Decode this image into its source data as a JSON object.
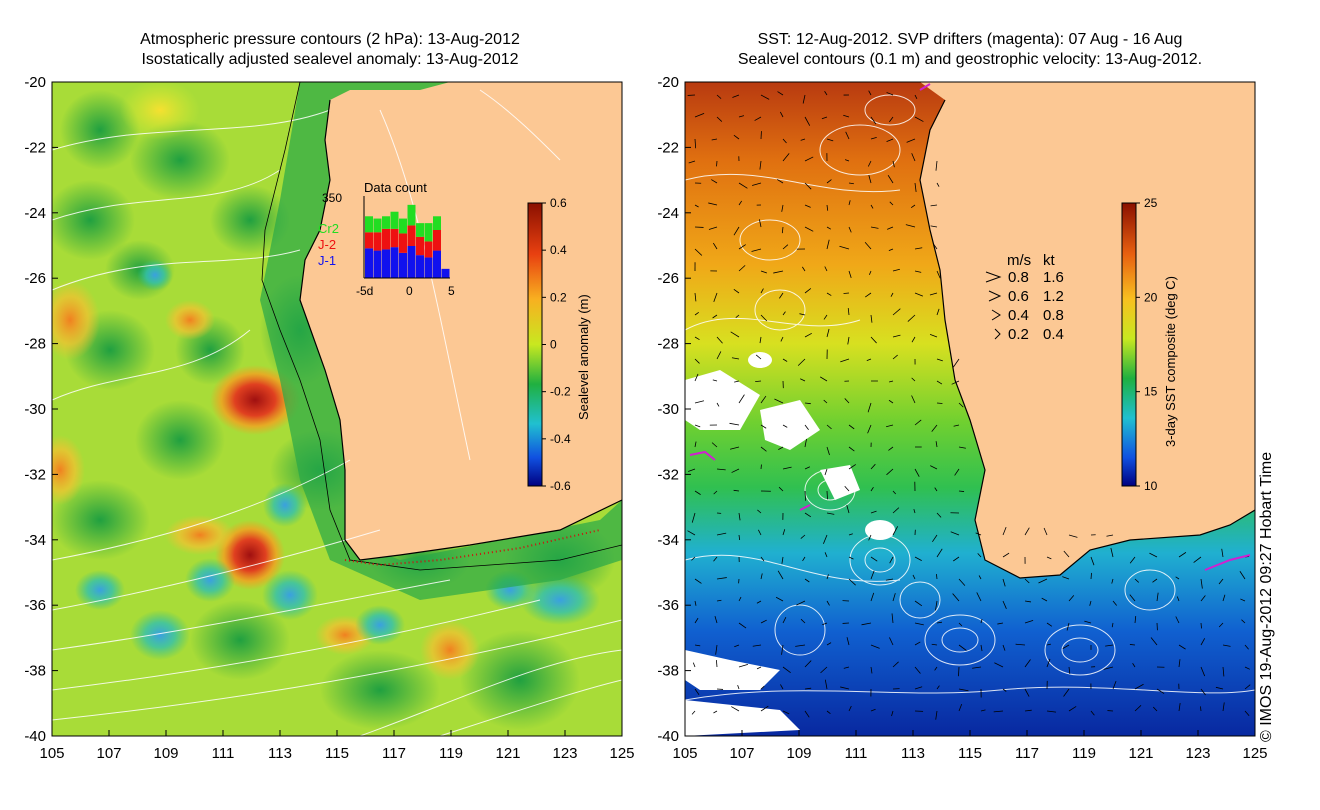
{
  "left_panel": {
    "title_line1": "Atmospheric pressure contours (2 hPa): 13-Aug-2012",
    "title_line2": "Isostatically adjusted sealevel anomaly: 13-Aug-2012",
    "y_ticks": [
      "-20",
      "-22",
      "-24",
      "-26",
      "-28",
      "-30",
      "-32",
      "-34",
      "-36",
      "-38",
      "-40"
    ],
    "x_ticks": [
      "105",
      "107",
      "109",
      "111",
      "113",
      "115",
      "117",
      "119",
      "121",
      "123",
      "125"
    ],
    "colorbar": {
      "label": "Sealevel anomaly (m)",
      "ticks": [
        "0.6",
        "0.4",
        "0.2",
        "0",
        "-0.2",
        "-0.4",
        "-0.6"
      ]
    },
    "data_count": {
      "title": "Data count",
      "max_label": "350",
      "x_labels": [
        "-5d",
        "0",
        "5"
      ],
      "legend": [
        {
          "name": "Cr2",
          "color": "#22dd22"
        },
        {
          "name": "J-2",
          "color": "#ee1111"
        },
        {
          "name": "J-1",
          "color": "#1111ee"
        }
      ],
      "bars": [
        {
          "j1": 130,
          "j2": 70,
          "cr2": 70
        },
        {
          "j1": 120,
          "j2": 80,
          "cr2": 60
        },
        {
          "j1": 125,
          "j2": 90,
          "cr2": 55
        },
        {
          "j1": 135,
          "j2": 80,
          "cr2": 75
        },
        {
          "j1": 110,
          "j2": 85,
          "cr2": 65
        },
        {
          "j1": 140,
          "j2": 90,
          "cr2": 90
        },
        {
          "j1": 100,
          "j2": 80,
          "cr2": 60
        },
        {
          "j1": 90,
          "j2": 70,
          "cr2": 80
        },
        {
          "j1": 120,
          "j2": 90,
          "cr2": 60
        },
        {
          "j1": 40,
          "j2": 0,
          "cr2": 0
        }
      ]
    }
  },
  "right_panel": {
    "title_line1": "SST: 12-Aug-2012. SVP drifters (magenta): 07 Aug - 16 Aug",
    "title_line2": "Sealevel contours (0.1 m) and geostrophic velocity: 13-Aug-2012.",
    "y_ticks": [
      "-20",
      "-22",
      "-24",
      "-26",
      "-28",
      "-30",
      "-32",
      "-34",
      "-36",
      "-38",
      "-40"
    ],
    "x_ticks": [
      "105",
      "107",
      "109",
      "111",
      "113",
      "115",
      "117",
      "119",
      "121",
      "123",
      "125"
    ],
    "colorbar": {
      "label": "3-day SST composite (deg C)",
      "ticks": [
        "25",
        "20",
        "15",
        "10"
      ]
    },
    "velocity_legend": {
      "header_ms": "m/s",
      "header_kt": "kt",
      "rows": [
        {
          "ms": "0.8",
          "kt": "1.6"
        },
        {
          "ms": "0.6",
          "kt": "1.2"
        },
        {
          "ms": "0.4",
          "kt": "0.8"
        },
        {
          "ms": "0.2",
          "kt": "0.4"
        }
      ]
    }
  },
  "credit": "© IMOS 19-Aug-2012 09:27 Hobart Time"
}
